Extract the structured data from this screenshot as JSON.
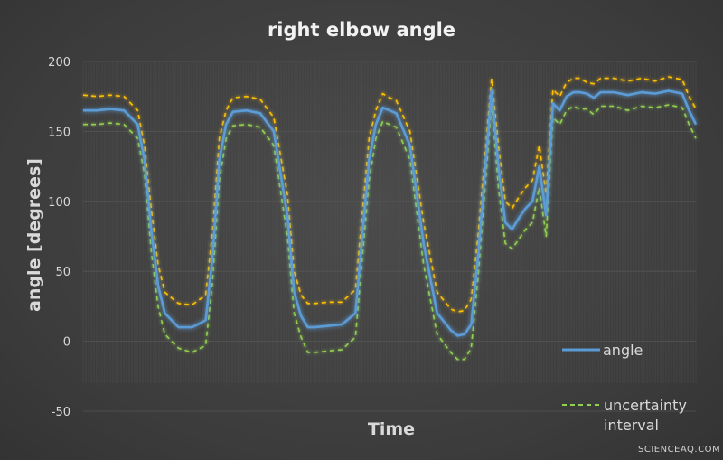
{
  "watermark": "SCIENCEAQ.COM",
  "chart_data": {
    "type": "line",
    "title": "right elbow angle",
    "xlabel": "Time",
    "ylabel": "angle [degrees]",
    "ylim": [
      -50,
      200
    ],
    "yticks": [
      200,
      150,
      100,
      50,
      0,
      -50
    ],
    "grid": true,
    "legend_position": "bottom-right",
    "x": [
      0,
      2,
      4,
      6,
      8,
      9,
      10,
      11,
      12,
      14,
      16,
      18,
      19,
      20,
      21,
      22,
      24,
      26,
      28,
      30,
      31,
      32,
      33,
      34,
      36,
      38,
      40,
      42,
      43,
      44,
      45,
      46,
      48,
      50,
      52,
      54,
      55,
      56,
      57,
      58,
      60,
      61,
      62,
      63,
      64,
      65,
      66,
      67,
      68,
      69,
      70,
      71,
      72,
      73,
      74,
      75,
      76,
      78,
      80,
      82,
      84,
      86,
      88,
      89,
      90
    ],
    "series": [
      {
        "name": "angle",
        "color": "#5b9bd5",
        "values": [
          165,
          165,
          166,
          165,
          155,
          130,
          80,
          40,
          20,
          10,
          10,
          15,
          60,
          130,
          155,
          164,
          165,
          163,
          150,
          90,
          35,
          18,
          10,
          10,
          11,
          12,
          20,
          130,
          155,
          167,
          165,
          163,
          140,
          70,
          20,
          8,
          4,
          5,
          12,
          60,
          180,
          125,
          85,
          80,
          88,
          95,
          100,
          125,
          90,
          170,
          165,
          175,
          178,
          178,
          177,
          174,
          178,
          178,
          176,
          178,
          177,
          179,
          177,
          165,
          155
        ]
      },
      {
        "name": "uncertainty interval",
        "color": "#ffc000",
        "dashed": true,
        "values": [
          176,
          175,
          176,
          175,
          165,
          140,
          95,
          55,
          35,
          27,
          26,
          33,
          78,
          145,
          165,
          174,
          175,
          173,
          160,
          105,
          50,
          33,
          27,
          27,
          28,
          28,
          37,
          145,
          165,
          177,
          174,
          172,
          150,
          85,
          35,
          23,
          21,
          22,
          30,
          75,
          188,
          140,
          100,
          95,
          103,
          110,
          115,
          140,
          105,
          180,
          175,
          185,
          188,
          188,
          185,
          184,
          188,
          188,
          186,
          188,
          186,
          189,
          187,
          175,
          166
        ]
      },
      {
        "name": "uncertainty interval",
        "color": "#92d050",
        "dashed": true,
        "values": [
          155,
          155,
          156,
          155,
          145,
          120,
          65,
          25,
          5,
          -5,
          -8,
          -3,
          42,
          115,
          145,
          154,
          155,
          153,
          140,
          75,
          20,
          3,
          -8,
          -8,
          -7,
          -6,
          3,
          115,
          145,
          157,
          155,
          153,
          130,
          55,
          5,
          -8,
          -13,
          -13,
          -5,
          45,
          170,
          110,
          70,
          66,
          73,
          80,
          85,
          110,
          75,
          160,
          155,
          165,
          168,
          166,
          166,
          162,
          168,
          168,
          165,
          168,
          167,
          169,
          167,
          155,
          145
        ]
      }
    ],
    "legend": [
      {
        "label": "angle",
        "style": "solid",
        "color": "#5b9bd5"
      },
      {
        "label": "uncertainty interval",
        "style": "dashed",
        "color": "#92d050"
      }
    ]
  }
}
